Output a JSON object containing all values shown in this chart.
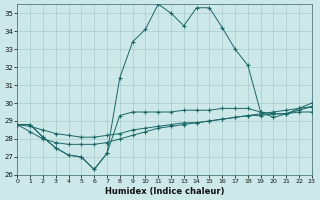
{
  "bg_color": "#cce8e8",
  "grid_color": "#aacccc",
  "line_color": "#1a6868",
  "xlabel": "Humidex (Indice chaleur)",
  "xlim": [
    0,
    23
  ],
  "ylim": [
    26,
    35.5
  ],
  "xticks": [
    0,
    1,
    2,
    3,
    4,
    5,
    6,
    7,
    8,
    9,
    10,
    11,
    12,
    13,
    14,
    15,
    16,
    17,
    18,
    19,
    20,
    21,
    22,
    23
  ],
  "yticks": [
    26,
    27,
    28,
    29,
    30,
    31,
    32,
    33,
    34,
    35
  ],
  "curves": [
    {
      "x": [
        0,
        1,
        2,
        3,
        4,
        5,
        6,
        7,
        8,
        9,
        10,
        11,
        12,
        13,
        14,
        15,
        16,
        17,
        18,
        19,
        20,
        21,
        22,
        23
      ],
      "y": [
        28.8,
        28.8,
        28.1,
        27.5,
        27.1,
        27.0,
        26.3,
        27.2,
        31.4,
        33.4,
        34.1,
        35.5,
        35.0,
        34.3,
        35.3,
        35.3,
        34.2,
        33.0,
        32.1,
        29.5,
        29.2,
        29.4,
        29.7,
        30.0
      ]
    },
    {
      "x": [
        0,
        1,
        2,
        3,
        4,
        5,
        6,
        7,
        8,
        9,
        10,
        11,
        12,
        13,
        14,
        15,
        16,
        17,
        18,
        19,
        20,
        21,
        22,
        23
      ],
      "y": [
        28.8,
        28.4,
        28.0,
        27.8,
        27.7,
        27.7,
        27.7,
        27.8,
        28.0,
        28.2,
        28.4,
        28.6,
        28.7,
        28.8,
        28.9,
        29.0,
        29.1,
        29.2,
        29.3,
        29.4,
        29.5,
        29.6,
        29.7,
        29.8
      ]
    },
    {
      "x": [
        0,
        1,
        2,
        3,
        4,
        5,
        6,
        7,
        8,
        9,
        10,
        11,
        12,
        13,
        14,
        15,
        16,
        17,
        18,
        19,
        20,
        21,
        22,
        23
      ],
      "y": [
        28.8,
        28.8,
        28.1,
        27.5,
        27.1,
        27.0,
        26.3,
        27.2,
        29.3,
        29.5,
        29.5,
        29.5,
        29.5,
        29.6,
        29.6,
        29.6,
        29.7,
        29.7,
        29.7,
        29.5,
        29.4,
        29.4,
        29.6,
        29.8
      ]
    },
    {
      "x": [
        0,
        1,
        2,
        3,
        4,
        5,
        6,
        7,
        8,
        9,
        10,
        11,
        12,
        13,
        14,
        15,
        16,
        17,
        18,
        19,
        20,
        21,
        22,
        23
      ],
      "y": [
        28.8,
        28.7,
        28.5,
        28.3,
        28.2,
        28.1,
        28.1,
        28.2,
        28.3,
        28.5,
        28.6,
        28.7,
        28.8,
        28.9,
        28.9,
        29.0,
        29.1,
        29.2,
        29.3,
        29.3,
        29.4,
        29.4,
        29.5,
        29.5
      ]
    }
  ]
}
